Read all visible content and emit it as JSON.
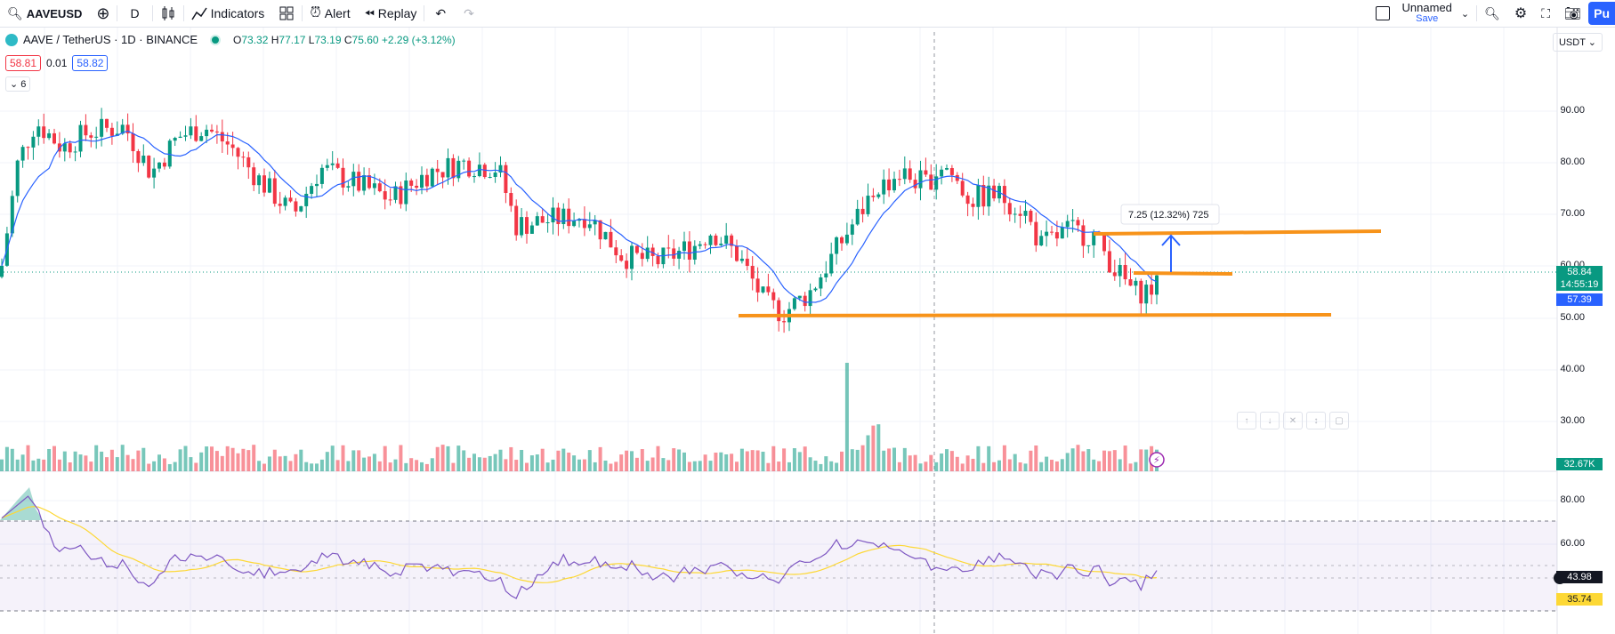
{
  "toolbar": {
    "symbol": "AAVEUSD",
    "interval": "D",
    "indicators_label": "Indicators",
    "alert_label": "Alert",
    "replay_label": "Replay",
    "layout_name": "Unnamed",
    "save_label": "Save",
    "publish_label": "Pu"
  },
  "legend": {
    "title": "AAVE / TetherUS · 1D · BINANCE",
    "o_key": "O",
    "o": "73.32",
    "h_key": "H",
    "h": "77.17",
    "l_key": "L",
    "l": "73.19",
    "c_key": "C",
    "c": "75.60",
    "change": "+2.29 (+3.12%)",
    "sell_price": "58.81",
    "spread": "0.01",
    "buy_price": "58.82",
    "collapse_count": "6"
  },
  "currency": "USDT",
  "price_axis": [
    "90.00",
    "80.00",
    "70.00",
    "60.00",
    "50.00",
    "40.00",
    "30.00"
  ],
  "price_tags": {
    "last": "58.84",
    "countdown": "14:55:19",
    "ma": "57.39",
    "volume": "32.67K"
  },
  "measure_label": "7.25 (12.32%) 725",
  "rsi_axis": [
    "80.00",
    "60.00"
  ],
  "rsi_tags": {
    "rsi": "43.98",
    "ma": "35.74"
  },
  "colors": {
    "up": "#089981",
    "down": "#f23645",
    "ma_line": "#2962ff",
    "levels": "#f7931a",
    "rsi_line": "#7e57c2",
    "rsi_ma": "#fdd835"
  }
}
